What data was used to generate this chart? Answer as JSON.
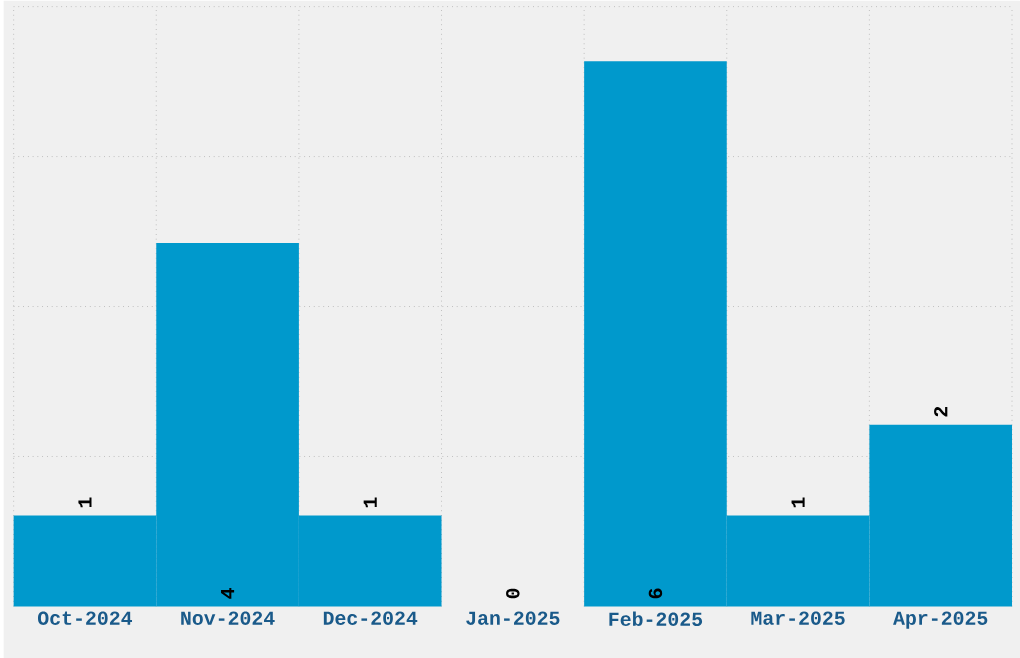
{
  "chart_data": {
    "type": "bar",
    "categories": [
      "Oct-2024",
      "Nov-2024",
      "Dec-2024",
      "Jan-2025",
      "Feb-2025",
      "Mar-2025",
      "Apr-2025"
    ],
    "values": [
      1,
      4,
      1,
      0,
      6,
      1,
      2
    ],
    "color": "#0099cc",
    "ylim": [
      0,
      6.6
    ],
    "yticks": [
      {
        "value": 1.65,
        "label": null
      },
      {
        "value": 3.3,
        "label": null
      },
      {
        "value": 4.95,
        "label": null
      },
      {
        "value": 6.6,
        "label": null
      }
    ],
    "tick_labels": "x",
    "grid": true,
    "data_labels": true
  }
}
